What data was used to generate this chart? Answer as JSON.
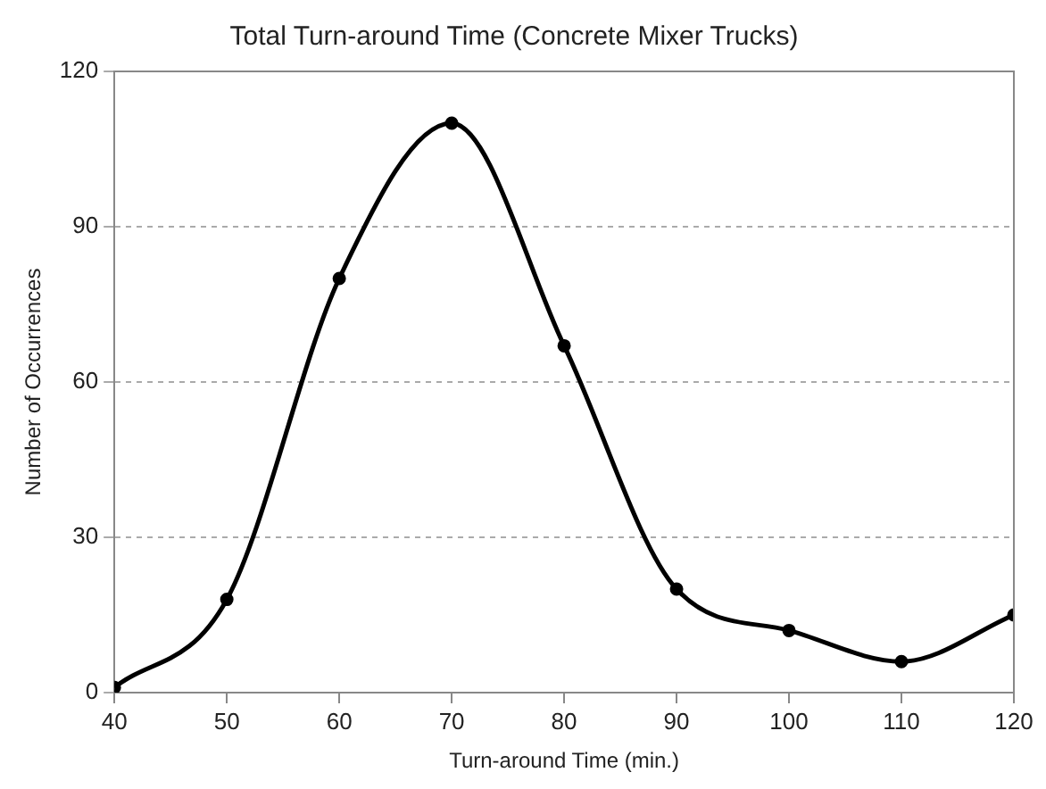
{
  "chart_data": {
    "type": "line",
    "title": "Total Turn-around Time (Concrete Mixer Trucks)",
    "xlabel": "Turn-around Time (min.)",
    "ylabel": "Number of Occurrences",
    "x": [
      40,
      50,
      60,
      70,
      80,
      90,
      100,
      110,
      120
    ],
    "series": [
      {
        "color": "#000000",
        "values": [
          1,
          18,
          80,
          110,
          67,
          20,
          12,
          6,
          15
        ]
      }
    ],
    "xlim": [
      40,
      120
    ],
    "xticks": [
      40,
      50,
      60,
      70,
      80,
      90,
      100,
      110,
      120
    ],
    "ylim": [
      0,
      120
    ],
    "yticks": [
      0,
      30,
      60,
      90,
      120
    ],
    "grid": "y",
    "legend": false,
    "marker": "circle",
    "line_style": "solid"
  }
}
